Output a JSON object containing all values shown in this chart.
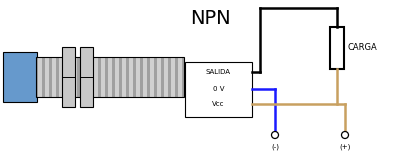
{
  "title": "NPN",
  "bg_color": "#ffffff",
  "sensor_body_color": "#a0a0a0",
  "sensor_body_light": "#d0d0d0",
  "sensor_face_color": "#6699cc",
  "nut_color": "#c8c8c8",
  "wire_black_color": "#000000",
  "wire_blue_color": "#1a1aff",
  "wire_brown_color": "#c8a060",
  "text_salida": "SALIDA",
  "text_0v": "0 V",
  "text_vcc": "Vcc",
  "text_carga": "CARGA",
  "text_minus": "(-)",
  "text_plus": "(+)"
}
